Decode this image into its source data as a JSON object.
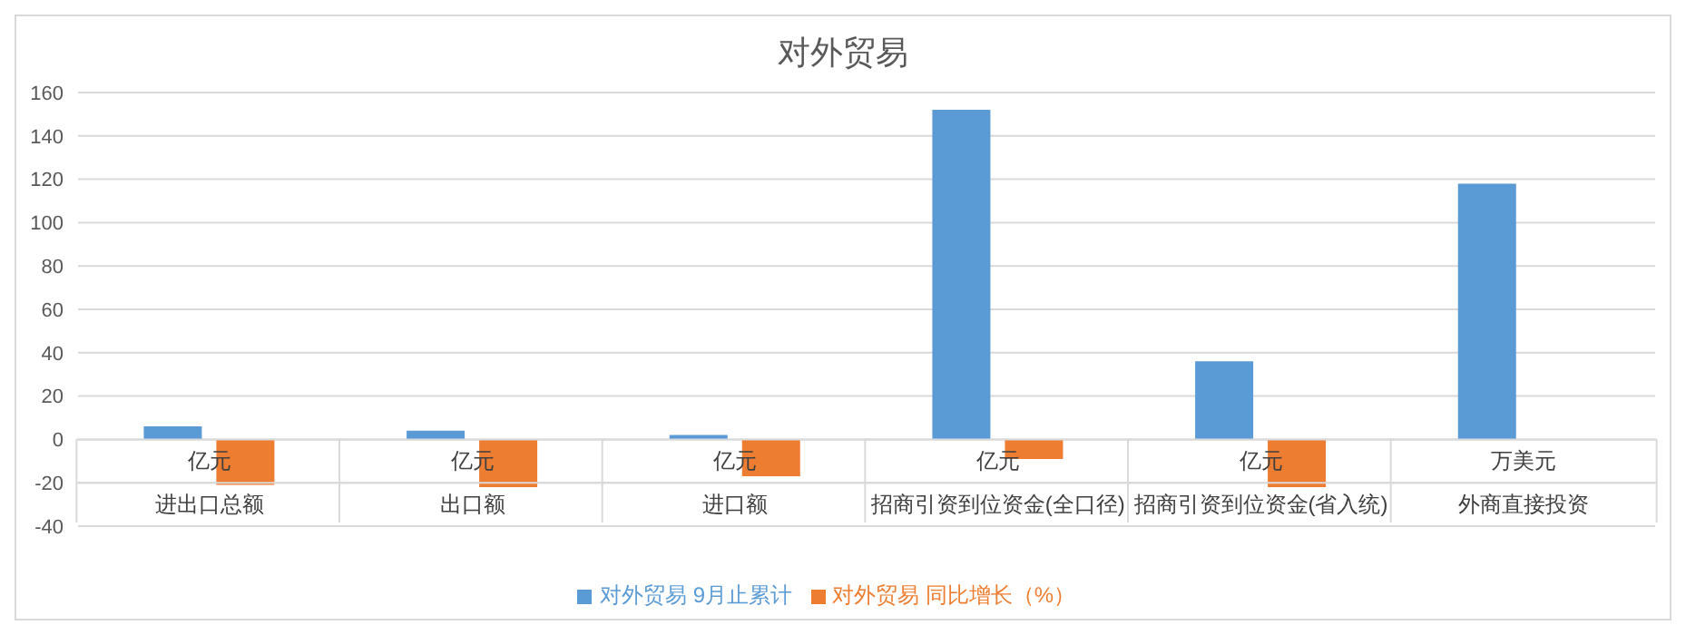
{
  "chart_data": {
    "type": "bar",
    "title": "对外贸易",
    "categories": [
      "进出口总额",
      "出口额",
      "进口额",
      "招商引资到位资金(全口径)",
      "招商引资到位资金(省入统)",
      "外商直接投资"
    ],
    "annotations": [
      "亿元",
      "亿元",
      "亿元",
      "亿元",
      "亿元",
      "万美元"
    ],
    "series": [
      {
        "name": "对外贸易 9月止累计",
        "color": "#5b9bd5",
        "values": [
          6,
          4,
          2,
          152,
          36,
          118
        ]
      },
      {
        "name": "对外贸易 同比增长（%）",
        "color": "#ed7d31",
        "values": [
          -21,
          -22,
          -17,
          -9,
          -22,
          null
        ]
      }
    ],
    "ylim": [
      -40,
      160
    ],
    "yticks": [
      -40,
      -20,
      0,
      20,
      40,
      60,
      80,
      100,
      120,
      140,
      160
    ],
    "grid": "y",
    "legend": "bottom"
  }
}
